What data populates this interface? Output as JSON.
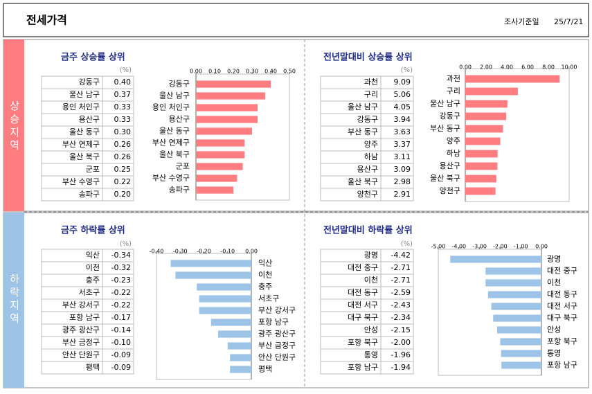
{
  "header": {
    "title": "전세가격",
    "date_label": "조사기준일",
    "date": "25/7/21"
  },
  "sections": [
    "상승지역",
    "하락지역"
  ],
  "chart_data": [
    {
      "type": "bar",
      "orientation": "horizontal",
      "title": "금주 상승률 상위",
      "unit": "(%)",
      "color": "#ff7c80",
      "categories": [
        "강동구",
        "울산 남구",
        "용인 처인구",
        "용산구",
        "울산 동구",
        "부산 연제구",
        "울산 북구",
        "군포",
        "부산 수영구",
        "송파구"
      ],
      "values": [
        0.4,
        0.37,
        0.33,
        0.33,
        0.3,
        0.26,
        0.26,
        0.25,
        0.22,
        0.2
      ],
      "value_labels": [
        "0.40",
        "0.37",
        "0.33",
        "0.33",
        "0.30",
        "0.26",
        "0.26",
        "0.25",
        "0.22",
        "0.20"
      ],
      "xlim": [
        0,
        0.5
      ],
      "xticks": [
        {
          "value": 0,
          "label": "0.00"
        },
        {
          "value": 0.1,
          "label": "0.10"
        },
        {
          "value": 0.2,
          "label": "0.20"
        },
        {
          "value": 0.3,
          "label": "0.30"
        },
        {
          "value": 0.4,
          "label": "0.40"
        },
        {
          "value": 0.5,
          "label": "0.50"
        }
      ]
    },
    {
      "type": "bar",
      "orientation": "horizontal",
      "title": "전년말대비 상승률 상위",
      "unit": "(%)",
      "color": "#ff7c80",
      "categories": [
        "과천",
        "구리",
        "울산 남구",
        "강동구",
        "부산 동구",
        "양주",
        "하남",
        "용산구",
        "울산 북구",
        "양천구"
      ],
      "values": [
        9.09,
        5.06,
        4.05,
        3.94,
        3.63,
        3.37,
        3.11,
        3.09,
        2.98,
        2.91
      ],
      "xlim": [
        0,
        10
      ],
      "xticks": [
        {
          "value": 0,
          "label": "0.00"
        },
        {
          "value": 2,
          "label": "2.00"
        },
        {
          "value": 4,
          "label": "4.00"
        },
        {
          "value": 6,
          "label": "6.00"
        },
        {
          "value": 8,
          "label": "8.00"
        },
        {
          "value": 10,
          "label": "10.00"
        }
      ]
    },
    {
      "type": "bar",
      "orientation": "horizontal",
      "title": "금주 하락률 상위",
      "unit": "(%)",
      "color": "#9dc3e6",
      "categories": [
        "익산",
        "이천",
        "충주",
        "서초구",
        "부산 강서구",
        "포항 남구",
        "광주 광산구",
        "부산 금정구",
        "안산 단원구",
        "평택"
      ],
      "values": [
        -0.34,
        -0.32,
        -0.23,
        -0.22,
        -0.22,
        -0.17,
        -0.14,
        -0.1,
        -0.09,
        -0.09
      ],
      "value_labels": [
        "-0.34",
        "-0.32",
        "-0.23",
        "-0.22",
        "-0.22",
        "-0.17",
        "-0.14",
        "-0.10",
        "-0.09",
        "-0.09"
      ],
      "xlim": [
        -0.4,
        0
      ],
      "xticks": [
        {
          "value": -0.4,
          "label": "-0.40"
        },
        {
          "value": -0.3,
          "label": "-0.30"
        },
        {
          "value": -0.2,
          "label": "-0.20"
        },
        {
          "value": -0.1,
          "label": "-0.10"
        },
        {
          "value": 0,
          "label": "0.00"
        }
      ]
    },
    {
      "type": "bar",
      "orientation": "horizontal",
      "title": "전년말대비 하락률 상위",
      "unit": "(%)",
      "color": "#9dc3e6",
      "categories": [
        "광명",
        "대전 중구",
        "이천",
        "대전 동구",
        "대전 서구",
        "대구 북구",
        "안성",
        "포항 북구",
        "통영",
        "포항 남구"
      ],
      "values": [
        -4.42,
        -2.71,
        -2.71,
        -2.59,
        -2.43,
        -2.34,
        -2.15,
        -2,
        -1.96,
        -1.94
      ],
      "value_labels": [
        "-4.42",
        "-2.71",
        "-2.71",
        "-2.59",
        "-2.43",
        "-2.34",
        "-2.15",
        "-2.00",
        "-1.96",
        "-1.94"
      ],
      "xlim": [
        -5,
        0
      ],
      "xticks": [
        {
          "value": -5,
          "label": "-5.00"
        },
        {
          "value": -4,
          "label": "-4.00"
        },
        {
          "value": -3,
          "label": "-3.00"
        },
        {
          "value": -2,
          "label": "-2.00"
        },
        {
          "value": -1,
          "label": "-1.00"
        },
        {
          "value": 0,
          "label": "0.00"
        }
      ]
    }
  ]
}
